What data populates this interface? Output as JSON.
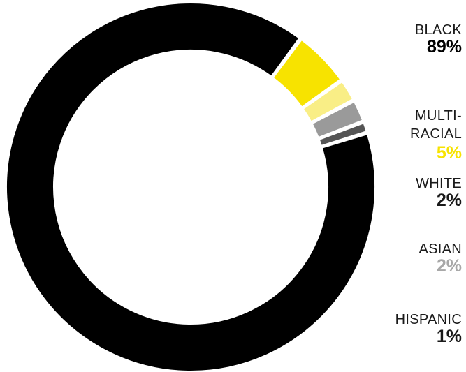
{
  "chart_data": {
    "type": "pie",
    "variant": "donut",
    "categories": [
      "BLACK",
      "MULTI-RACIAL",
      "WHITE",
      "ASIAN",
      "HISPANIC"
    ],
    "values": [
      89,
      5,
      2,
      2,
      1
    ],
    "value_labels": [
      "89%",
      "5%",
      "2%",
      "2%",
      "1%"
    ],
    "colors": [
      "#000000",
      "#f7e300",
      "#f9ee86",
      "#9a9a9a",
      "#555555"
    ],
    "value_colors": [
      "#000000",
      "#f7e300",
      "#1a1a1a",
      "#a8a8a8",
      "#1a1a1a"
    ],
    "legend_position": "right",
    "title": ""
  },
  "legend": {
    "black": {
      "label": "BLACK",
      "value": "89%"
    },
    "multiracial": {
      "label_line1": "MULTI-",
      "label_line2": "RACIAL",
      "value": "5%"
    },
    "white": {
      "label": "WHITE",
      "value": "2%"
    },
    "asian": {
      "label": "ASIAN",
      "value": "2%"
    },
    "hispanic": {
      "label": "HISPANIC",
      "value": "1%"
    }
  }
}
